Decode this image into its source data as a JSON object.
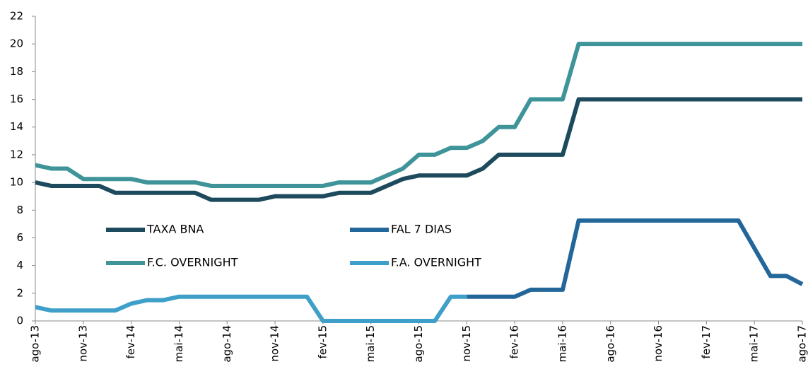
{
  "chart_data": {
    "type": "line",
    "categories": [
      "ago-13",
      null,
      null,
      "nov-13",
      null,
      null,
      "fev-14",
      null,
      null,
      "mai-14",
      null,
      null,
      "ago-14",
      null,
      null,
      "nov-14",
      null,
      null,
      "fev-15",
      null,
      null,
      "mai-15",
      null,
      null,
      "ago-15",
      null,
      null,
      "nov-15",
      null,
      null,
      "fev-16",
      null,
      null,
      "mai-16",
      null,
      null,
      "ago-16",
      null,
      null,
      "nov-16",
      null,
      null,
      "fev-17",
      null,
      null,
      "mai-17",
      null,
      null,
      "ago-17"
    ],
    "series": [
      {
        "name": "TAXA BNA",
        "color": "#1d4a5c",
        "values": [
          10,
          9.75,
          9.75,
          9.75,
          9.75,
          9.25,
          9.25,
          9.25,
          9.25,
          9.25,
          9.25,
          8.75,
          8.75,
          8.75,
          8.75,
          9,
          9,
          9,
          9,
          9.25,
          9.25,
          9.25,
          9.75,
          10.25,
          10.5,
          10.5,
          10.5,
          10.5,
          11,
          12,
          12,
          12,
          12,
          12,
          16,
          16,
          16,
          16,
          16,
          16,
          16,
          16,
          16,
          16,
          16,
          16,
          16,
          16,
          16
        ]
      },
      {
        "name": "FAL 7 DIAS",
        "color": "#23679a",
        "values": [
          null,
          null,
          null,
          null,
          null,
          null,
          null,
          null,
          null,
          null,
          null,
          null,
          null,
          null,
          null,
          null,
          null,
          null,
          null,
          null,
          null,
          null,
          null,
          null,
          null,
          null,
          null,
          1.75,
          1.75,
          1.75,
          1.75,
          2.25,
          2.25,
          2.25,
          7.25,
          7.25,
          7.25,
          7.25,
          7.25,
          7.25,
          7.25,
          7.25,
          7.25,
          7.25,
          7.25,
          5.25,
          3.25,
          3.25,
          2.65
        ]
      },
      {
        "name": "F.C. OVERNIGHT",
        "color": "#3f9499",
        "values": [
          11.25,
          11,
          11,
          10.25,
          10.25,
          10.25,
          10.25,
          10,
          10,
          10,
          10,
          9.75,
          9.75,
          9.75,
          9.75,
          9.75,
          9.75,
          9.75,
          9.75,
          10,
          10,
          10,
          10.5,
          11,
          12,
          12,
          12.5,
          12.5,
          13,
          14,
          14,
          16,
          16,
          16,
          20,
          20,
          20,
          20,
          20,
          20,
          20,
          20,
          20,
          20,
          20,
          20,
          20,
          20,
          20
        ]
      },
      {
        "name": "F.A. OVERNIGHT",
        "color": "#3ea0c9",
        "values": [
          1,
          0.75,
          0.75,
          0.75,
          0.75,
          0.75,
          1.25,
          1.5,
          1.5,
          1.75,
          1.75,
          1.75,
          1.75,
          1.75,
          1.75,
          1.75,
          1.75,
          1.75,
          0,
          0,
          0,
          0,
          0,
          0,
          0,
          0,
          1.75,
          1.75,
          null,
          null,
          null,
          null,
          null,
          null,
          null,
          null,
          null,
          null,
          null,
          null,
          null,
          null,
          null,
          null,
          null,
          null,
          null,
          null,
          null
        ]
      }
    ],
    "ylim": [
      0,
      22
    ],
    "yticks": [
      0,
      2,
      4,
      6,
      8,
      10,
      12,
      14,
      16,
      18,
      20,
      22
    ],
    "grid": false
  }
}
